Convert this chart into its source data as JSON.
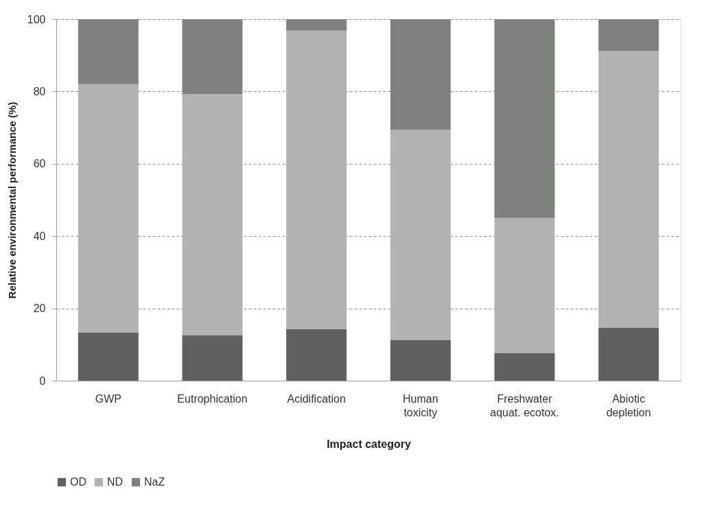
{
  "chart_data": {
    "type": "bar",
    "stacked": true,
    "xlabel": "Impact category",
    "ylabel": "Relative environmental performance (%)",
    "categories": [
      "GWP",
      "Eutrophication",
      "Acidification",
      "Human\ntoxicity",
      "Freshwater\naquat. ecotox.",
      "Abiotic\ndepletion"
    ],
    "series": [
      {
        "name": "OD",
        "color": "#606060",
        "values": [
          13.3,
          12.6,
          14.3,
          11.3,
          7.7,
          14.6
        ]
      },
      {
        "name": "ND",
        "color": "#b2b2b2",
        "values": [
          68.7,
          66.7,
          82.5,
          58.1,
          37.3,
          76.6
        ]
      },
      {
        "name": "NaZ",
        "color": "#7f817f",
        "values": [
          18.0,
          20.7,
          3.2,
          30.6,
          55.0,
          8.8
        ]
      }
    ],
    "ylim": [
      0,
      100
    ],
    "yticks": [
      0,
      20,
      40,
      60,
      80,
      100
    ],
    "grid": "y",
    "legend": "bottom"
  }
}
